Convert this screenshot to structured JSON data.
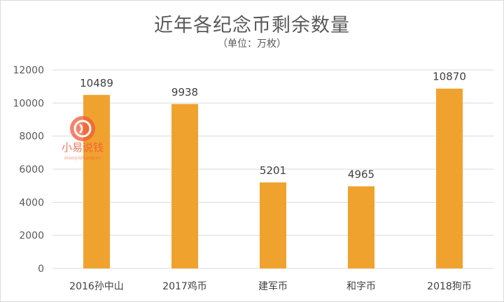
{
  "chart_data": {
    "type": "bar",
    "title": "近年各纪念币剩余数量",
    "subtitle": "（单位：万枚）",
    "categories": [
      "2016孙中山",
      "2017鸡币",
      "建军币",
      "和字币",
      "2018狗币"
    ],
    "values": [
      10489,
      9938,
      5201,
      4965,
      10870
    ],
    "ylim": [
      0,
      12000
    ],
    "yticks": [
      0,
      2000,
      4000,
      6000,
      8000,
      10000,
      12000
    ],
    "grid": true,
    "bar_color": "#f0a22e",
    "grid_color": "#d9d9d9"
  },
  "watermark": {
    "text": "小易说钱",
    "subtext": "xiaoyishuoqian",
    "color": "#f05a3a"
  }
}
